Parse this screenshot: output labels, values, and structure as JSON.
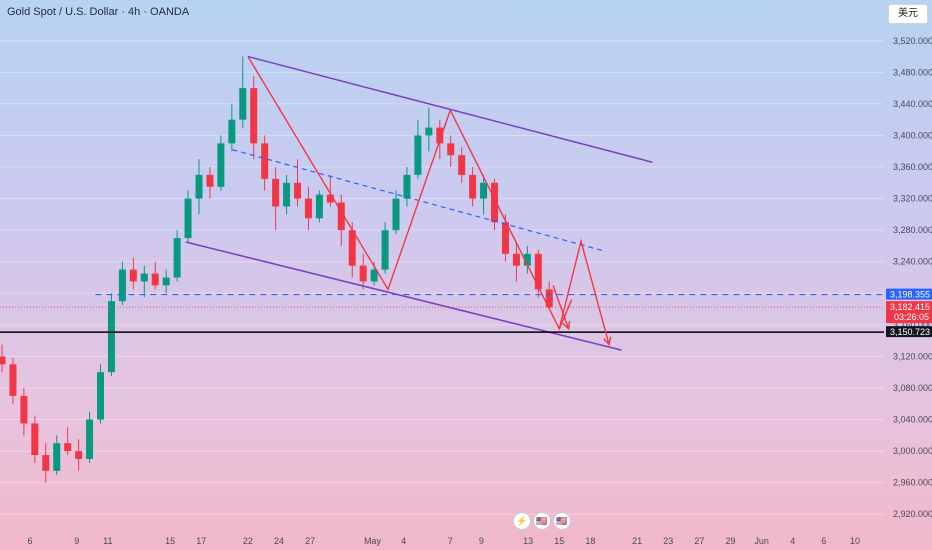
{
  "header": {
    "title": "Gold Spot / U.S. Dollar · 4h · OANDA",
    "currency_button": "美元"
  },
  "events": [
    "⚡",
    "🇺🇸",
    "🇺🇸"
  ],
  "chart_data": {
    "type": "candlestick",
    "ylim": [
      2900,
      3540
    ],
    "y_ticks": [
      2920,
      2960,
      3000,
      3040,
      3080,
      3120,
      3160,
      3200,
      3240,
      3280,
      3320,
      3360,
      3400,
      3440,
      3480,
      3520
    ],
    "y_tick_labels": [
      "2,920.000",
      "2,960.000",
      "3,000.000",
      "3,040.000",
      "3,080.000",
      "3,120.000",
      "3,160.000",
      "3,200.000",
      "3,240.000",
      "3,280.000",
      "3,320.000",
      "3,360.000",
      "3,400.000",
      "3,440.000",
      "3,480.000",
      "3,520.000"
    ],
    "x_ticks": [
      {
        "pos": 0,
        "label": "6"
      },
      {
        "pos": 3,
        "label": "9"
      },
      {
        "pos": 5,
        "label": "11"
      },
      {
        "pos": 9,
        "label": "15"
      },
      {
        "pos": 11,
        "label": "17"
      },
      {
        "pos": 14,
        "label": "22"
      },
      {
        "pos": 16,
        "label": "24"
      },
      {
        "pos": 18,
        "label": "27"
      },
      {
        "pos": 22,
        "label": "May"
      },
      {
        "pos": 24,
        "label": "4"
      },
      {
        "pos": 27,
        "label": "7"
      },
      {
        "pos": 29,
        "label": "9"
      },
      {
        "pos": 32,
        "label": "13"
      },
      {
        "pos": 34,
        "label": "15"
      },
      {
        "pos": 36,
        "label": "18"
      },
      {
        "pos": 39,
        "label": "21"
      },
      {
        "pos": 41,
        "label": "23"
      },
      {
        "pos": 43,
        "label": "27"
      },
      {
        "pos": 45,
        "label": "29"
      },
      {
        "pos": 47,
        "label": "Jun"
      },
      {
        "pos": 49,
        "label": "4"
      },
      {
        "pos": 51,
        "label": "6"
      },
      {
        "pos": 53,
        "label": "10"
      }
    ],
    "x_step_days": 1,
    "candles": [
      [
        3120,
        3135,
        3100,
        3110
      ],
      [
        3110,
        3118,
        3060,
        3070
      ],
      [
        3070,
        3080,
        3020,
        3035
      ],
      [
        3035,
        3045,
        2985,
        2995
      ],
      [
        2995,
        3010,
        2960,
        2975
      ],
      [
        2975,
        3020,
        2970,
        3010
      ],
      [
        3010,
        3030,
        2995,
        3000
      ],
      [
        3000,
        3015,
        2975,
        2990
      ],
      [
        2990,
        3050,
        2985,
        3040
      ],
      [
        3040,
        3110,
        3035,
        3100
      ],
      [
        3100,
        3200,
        3095,
        3190
      ],
      [
        3190,
        3240,
        3185,
        3230
      ],
      [
        3230,
        3245,
        3205,
        3215
      ],
      [
        3215,
        3235,
        3195,
        3225
      ],
      [
        3225,
        3240,
        3205,
        3210
      ],
      [
        3210,
        3230,
        3200,
        3220
      ],
      [
        3220,
        3280,
        3215,
        3270
      ],
      [
        3270,
        3330,
        3265,
        3320
      ],
      [
        3320,
        3370,
        3300,
        3350
      ],
      [
        3350,
        3360,
        3320,
        3335
      ],
      [
        3335,
        3400,
        3330,
        3390
      ],
      [
        3390,
        3440,
        3380,
        3420
      ],
      [
        3420,
        3500,
        3410,
        3460
      ],
      [
        3460,
        3475,
        3370,
        3390
      ],
      [
        3390,
        3400,
        3330,
        3345
      ],
      [
        3345,
        3360,
        3280,
        3310
      ],
      [
        3310,
        3350,
        3300,
        3340
      ],
      [
        3340,
        3370,
        3310,
        3320
      ],
      [
        3320,
        3335,
        3280,
        3295
      ],
      [
        3295,
        3330,
        3290,
        3325
      ],
      [
        3325,
        3350,
        3310,
        3315
      ],
      [
        3315,
        3325,
        3260,
        3280
      ],
      [
        3280,
        3290,
        3220,
        3235
      ],
      [
        3235,
        3250,
        3205,
        3215
      ],
      [
        3215,
        3240,
        3210,
        3230
      ],
      [
        3230,
        3290,
        3225,
        3280
      ],
      [
        3280,
        3330,
        3275,
        3320
      ],
      [
        3320,
        3360,
        3310,
        3350
      ],
      [
        3350,
        3420,
        3345,
        3400
      ],
      [
        3400,
        3435,
        3380,
        3410
      ],
      [
        3410,
        3420,
        3370,
        3390
      ],
      [
        3390,
        3400,
        3360,
        3375
      ],
      [
        3375,
        3385,
        3340,
        3350
      ],
      [
        3350,
        3360,
        3310,
        3320
      ],
      [
        3320,
        3350,
        3300,
        3340
      ],
      [
        3340,
        3345,
        3280,
        3290
      ],
      [
        3290,
        3300,
        3240,
        3250
      ],
      [
        3250,
        3265,
        3215,
        3235
      ],
      [
        3235,
        3260,
        3225,
        3250
      ],
      [
        3250,
        3255,
        3195,
        3205
      ],
      [
        3205,
        3215,
        3180,
        3182
      ]
    ],
    "last_candle_index": 34,
    "lines": {
      "upper_channel": {
        "from": [
          14,
          3500
        ],
        "to": [
          40,
          3366
        ]
      },
      "lower_channel": {
        "from": [
          10,
          3265
        ],
        "to": [
          38,
          3128
        ]
      },
      "midline_dashed": {
        "from": [
          13,
          3382
        ],
        "to": [
          37,
          3253
        ]
      },
      "horizontal_dashed": {
        "price": 3198.355
      },
      "horizontal_solid": {
        "price": 3150.723
      },
      "horizontal_dotted": {
        "price": 3182.415
      },
      "zigzag": [
        [
          14,
          3500
        ],
        [
          23,
          3205
        ],
        [
          27,
          3432
        ],
        [
          34,
          3155
        ],
        [
          35.4,
          3266
        ],
        [
          37.2,
          3135
        ]
      ]
    },
    "price_tags": [
      {
        "price": 3198.355,
        "label": "3,198.355",
        "color": "#2962ff"
      },
      {
        "price": 3182.415,
        "label": "3,182.415",
        "sub": "03:26:05",
        "color": "#f23645"
      },
      {
        "price": 3150.723,
        "label": "3,150.723",
        "color": "#131722"
      }
    ]
  }
}
